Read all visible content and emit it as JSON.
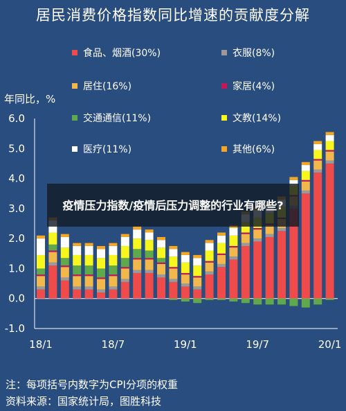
{
  "chart_data": {
    "type": "bar",
    "stacked": true,
    "title": "居民消费价格指数同比增速的贡献度分解",
    "ylabel": "年同比，%",
    "ylim": [
      -1.0,
      6.0
    ],
    "yticks": [
      "-1.0",
      "0.0",
      "1.0",
      "2.0",
      "3.0",
      "4.0",
      "5.0",
      "6.0"
    ],
    "xtick_labels": [
      "18/1",
      "18/7",
      "19/1",
      "19/7",
      "20/1"
    ],
    "xtick_index": [
      0,
      6,
      12,
      18,
      24
    ],
    "categories": [
      "2018-01",
      "2018-02",
      "2018-03",
      "2018-04",
      "2018-05",
      "2018-06",
      "2018-07",
      "2018-08",
      "2018-09",
      "2018-10",
      "2018-11",
      "2018-12",
      "2019-01",
      "2019-02",
      "2019-03",
      "2019-04",
      "2019-05",
      "2019-06",
      "2019-07",
      "2019-08",
      "2019-09",
      "2019-10",
      "2019-11",
      "2019-12",
      "2020-01"
    ],
    "series": [
      {
        "name": "食品、烟酒(30%)",
        "color": "#f04b4b",
        "values": [
          0.3,
          1.1,
          0.6,
          0.3,
          0.3,
          0.2,
          0.3,
          0.55,
          0.85,
          0.85,
          0.7,
          0.55,
          0.4,
          0.3,
          0.8,
          1.05,
          1.3,
          1.75,
          1.9,
          2.05,
          2.25,
          3.0,
          3.5,
          4.2,
          4.5
        ]
      },
      {
        "name": "衣服(8%)",
        "color": "#9a9a9a",
        "values": [
          0.1,
          0.1,
          0.1,
          0.1,
          0.1,
          0.1,
          0.1,
          0.1,
          0.1,
          0.1,
          0.1,
          0.1,
          0.1,
          0.1,
          0.1,
          0.1,
          0.1,
          0.1,
          0.1,
          0.1,
          0.1,
          0.1,
          0.1,
          0.1,
          0.1
        ]
      },
      {
        "name": "居住(16%)",
        "color": "#f2b84b",
        "values": [
          0.35,
          0.35,
          0.35,
          0.35,
          0.35,
          0.35,
          0.35,
          0.35,
          0.35,
          0.35,
          0.35,
          0.35,
          0.3,
          0.3,
          0.3,
          0.3,
          0.3,
          0.3,
          0.3,
          0.3,
          0.3,
          0.3,
          0.3,
          0.3,
          0.3
        ]
      },
      {
        "name": "家居(4%)",
        "color": "#c2185b",
        "values": [
          0.05,
          0.05,
          0.05,
          0.05,
          0.05,
          0.05,
          0.05,
          0.05,
          0.05,
          0.05,
          0.05,
          0.05,
          0.05,
          0.05,
          0.05,
          0.05,
          0.05,
          0.05,
          0.05,
          0.05,
          0.05,
          0.05,
          0.05,
          0.05,
          0.05
        ]
      },
      {
        "name": "交通通信(11%)",
        "color": "#5fa84b",
        "values": [
          0.2,
          0.2,
          0.25,
          0.3,
          0.3,
          0.3,
          0.3,
          0.3,
          0.3,
          0.25,
          0.15,
          -0.05,
          -0.1,
          -0.15,
          -0.05,
          -0.05,
          -0.1,
          -0.15,
          -0.2,
          -0.2,
          -0.2,
          -0.25,
          -0.3,
          -0.2,
          -0.05
        ]
      },
      {
        "name": "文教(14%)",
        "color": "#f7f71d",
        "values": [
          0.45,
          0.4,
          0.35,
          0.35,
          0.35,
          0.35,
          0.35,
          0.4,
          0.35,
          0.35,
          0.35,
          0.35,
          0.35,
          0.35,
          0.35,
          0.35,
          0.35,
          0.35,
          0.35,
          0.35,
          0.35,
          0.3,
          0.3,
          0.3,
          0.3
        ]
      },
      {
        "name": "医疗(11%)",
        "color": "#ffffff",
        "values": [
          0.55,
          0.4,
          0.35,
          0.3,
          0.3,
          0.3,
          0.3,
          0.3,
          0.3,
          0.25,
          0.25,
          0.25,
          0.25,
          0.25,
          0.25,
          0.25,
          0.25,
          0.25,
          0.25,
          0.25,
          0.25,
          0.2,
          0.2,
          0.2,
          0.2
        ]
      },
      {
        "name": "其他(6%)",
        "color": "#f5a623",
        "values": [
          0.1,
          0.1,
          0.1,
          0.1,
          0.1,
          0.1,
          0.1,
          0.1,
          0.1,
          0.1,
          0.1,
          0.1,
          0.1,
          0.1,
          0.1,
          0.1,
          0.1,
          0.1,
          0.1,
          0.1,
          0.1,
          0.1,
          0.1,
          0.1,
          0.1
        ]
      }
    ],
    "legend_position": "top"
  },
  "overlay_text": "疫情压力指数/疫情后压力调整的行业有哪些?",
  "note": "注：每项括号内数字为CPI分项的权重",
  "source": "资料来源：国家统计局，图胜科技"
}
